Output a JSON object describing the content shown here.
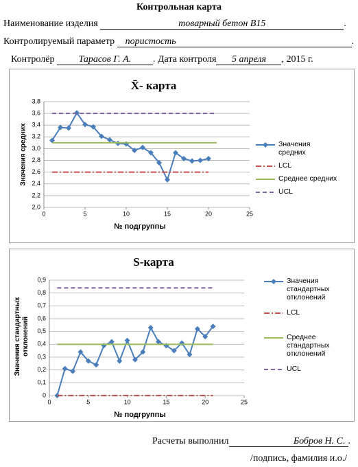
{
  "header": {
    "title": "Контрольная карта",
    "rows": [
      {
        "label": "Наименование изделия",
        "value": "товарный бетон  В15",
        "end": "."
      },
      {
        "label": "Контролируемый параметр",
        "value": "пористость",
        "end": "."
      }
    ],
    "inspector": {
      "label": "Контролёр",
      "value": "Тарасов Г. А.",
      "sep": ". Дата контроля",
      "date": "5  апреля",
      "year": ", 2015 г."
    }
  },
  "chart_data": [
    {
      "type": "line",
      "title": "X̄- карта",
      "y_label": "Значения средних",
      "x_label": "№ подгруппы",
      "xlim": [
        0,
        25
      ],
      "xticks": [
        0,
        5,
        10,
        15,
        20,
        25
      ],
      "ylim": [
        2.0,
        3.8
      ],
      "yticks": [
        {
          "value": 2.0,
          "label": "2,0"
        },
        {
          "value": 2.2,
          "label": "2,2"
        },
        {
          "value": 2.4,
          "label": "2,4"
        },
        {
          "value": 2.6,
          "label": "2,6"
        },
        {
          "value": 2.8,
          "label": "2,8"
        },
        {
          "value": 3.0,
          "label": "3,0"
        },
        {
          "value": 3.2,
          "label": "3,2"
        },
        {
          "value": 3.4,
          "label": "3,4"
        },
        {
          "value": 3.6,
          "label": "3,6"
        },
        {
          "value": 3.8,
          "label": "3,8"
        }
      ],
      "grid": true,
      "series": [
        {
          "name": "Значения средних",
          "color": "#4a7ebb",
          "style": "solid",
          "marker": "diamond",
          "x": [
            1,
            2,
            3,
            4,
            5,
            6,
            7,
            8,
            9,
            10,
            11,
            12,
            13,
            14,
            15,
            16,
            17,
            18,
            19,
            20
          ],
          "values": [
            3.14,
            3.36,
            3.35,
            3.61,
            3.41,
            3.37,
            3.21,
            3.15,
            3.09,
            3.08,
            2.97,
            3.02,
            2.93,
            2.76,
            2.47,
            2.93,
            2.83,
            2.79,
            2.8,
            2.83
          ]
        },
        {
          "name": "LCL",
          "color": "#c0504d",
          "style": "dashdot",
          "x": [
            1,
            20
          ],
          "values": [
            2.6,
            2.6
          ]
        },
        {
          "name": "Среднее средних",
          "color": "#9bbb59",
          "style": "solid",
          "x": [
            1,
            21
          ],
          "values": [
            3.1,
            3.1
          ]
        },
        {
          "name": "UCL",
          "color": "#8064a2",
          "style": "dashed",
          "x": [
            1,
            21
          ],
          "values": [
            3.6,
            3.6
          ]
        }
      ]
    },
    {
      "type": "line",
      "title": "S-карта",
      "y_label": "Значения стандартных отклонений",
      "x_label": "№ подгруппы",
      "xlim": [
        0,
        25
      ],
      "xticks": [
        0,
        5,
        10,
        15,
        20,
        25
      ],
      "ylim": [
        0,
        0.9
      ],
      "yticks": [
        0,
        {
          "value": 0.1,
          "label": "0,1"
        },
        {
          "value": 0.2,
          "label": "0,2"
        },
        {
          "value": 0.3,
          "label": "0,3"
        },
        {
          "value": 0.4,
          "label": "0,4"
        },
        {
          "value": 0.5,
          "label": "0,5"
        },
        {
          "value": 0.6,
          "label": "0,6"
        },
        {
          "value": 0.7,
          "label": "0,7"
        },
        {
          "value": 0.8,
          "label": "0,8"
        },
        {
          "value": 0.9,
          "label": "0,9"
        }
      ],
      "grid": true,
      "series": [
        {
          "name": "Значения стандартных отклонений",
          "color": "#4a7ebb",
          "style": "solid",
          "marker": "diamond",
          "x": [
            1,
            2,
            3,
            4,
            5,
            6,
            7,
            8,
            9,
            10,
            11,
            12,
            13,
            14,
            15,
            16,
            17,
            18,
            19,
            20,
            21
          ],
          "values": [
            0.0,
            0.21,
            0.19,
            0.34,
            0.27,
            0.24,
            0.39,
            0.42,
            0.27,
            0.43,
            0.28,
            0.34,
            0.53,
            0.42,
            0.39,
            0.35,
            0.41,
            0.32,
            0.52,
            0.46,
            0.54
          ]
        },
        {
          "name": "LCL",
          "color": "#c0504d",
          "style": "dashdot",
          "x": [
            1,
            21
          ],
          "values": [
            0,
            0
          ]
        },
        {
          "name": "Среднее стандартных отклонений",
          "color": "#9bbb59",
          "style": "solid",
          "x": [
            1,
            21
          ],
          "values": [
            0.4,
            0.4
          ]
        },
        {
          "name": "UCL",
          "color": "#8064a2",
          "style": "dashed",
          "x": [
            1,
            21
          ],
          "values": [
            0.84,
            0.84
          ]
        }
      ]
    }
  ],
  "footer": {
    "label": "Расчеты выполнил",
    "value": "Бобров Н. С.",
    "end": ".",
    "note": "/подпись, фамилия и.о./"
  }
}
